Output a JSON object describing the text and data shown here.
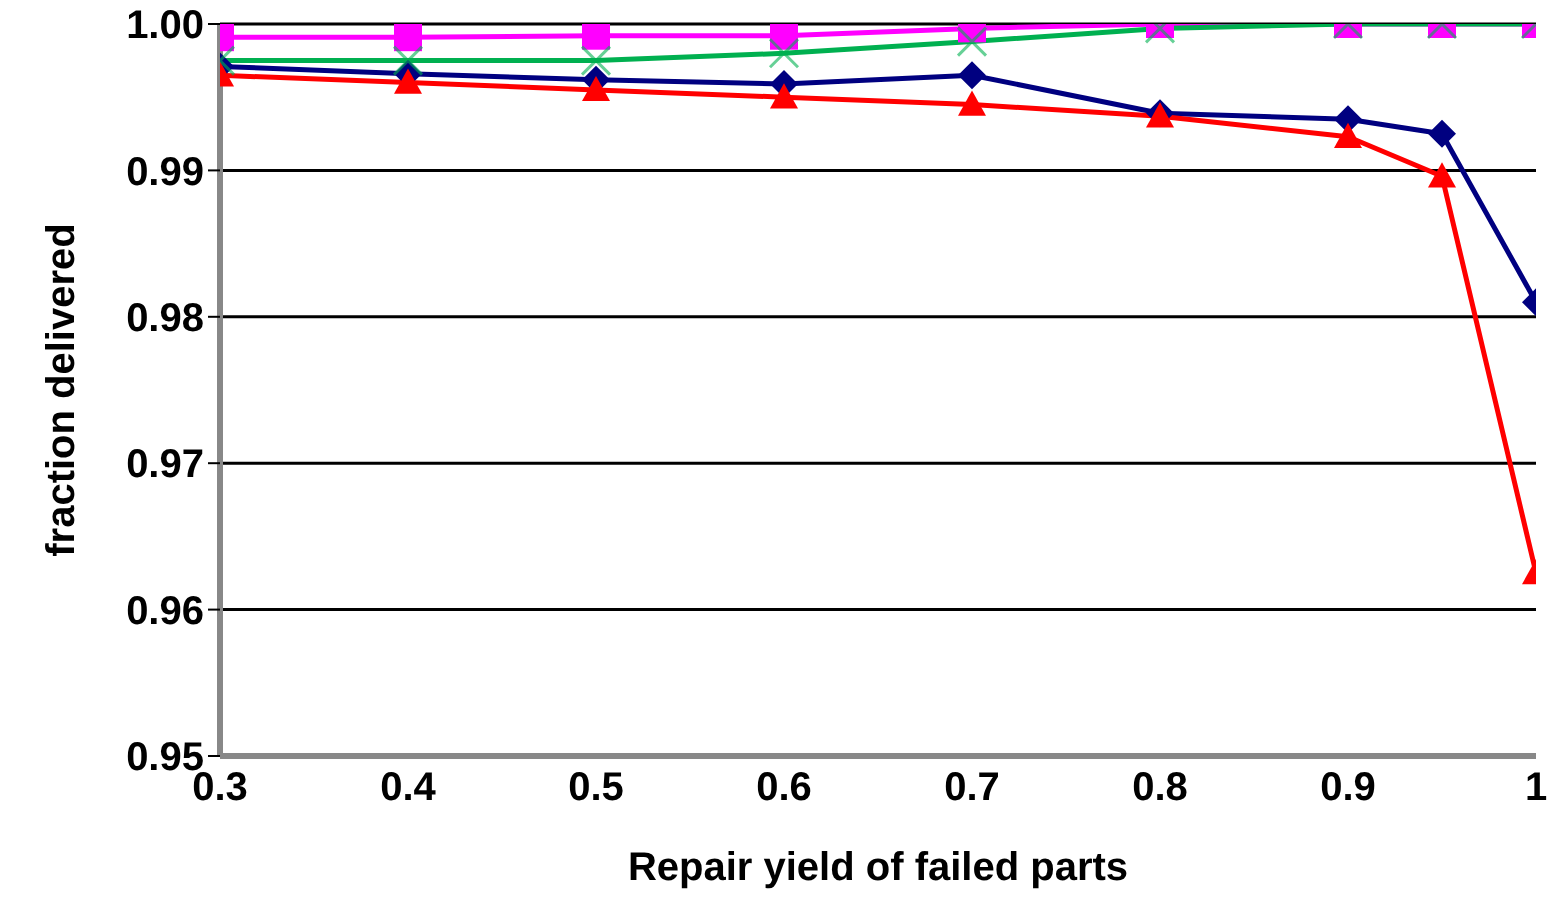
{
  "chart_data": {
    "type": "line",
    "xlabel": "Repair yield of failed parts",
    "ylabel": "fraction delivered",
    "x": [
      0.3,
      0.4,
      0.5,
      0.6,
      0.7,
      0.8,
      0.9,
      0.95,
      1
    ],
    "series": [
      {
        "color": "#000080",
        "marker": "diamond",
        "values": [
          0.9971,
          0.9966,
          0.9962,
          0.9959,
          0.9965,
          0.9939,
          0.9935,
          0.9925,
          0.981
        ]
      },
      {
        "color": "#ff00ff",
        "marker": "square",
        "values": [
          0.9991,
          0.9991,
          0.9992,
          0.9992,
          0.9997,
          1.0,
          1.0,
          1.0,
          1.0
        ]
      },
      {
        "color": "#ff0000",
        "marker": "triangle",
        "values": [
          0.9965,
          0.996,
          0.9955,
          0.995,
          0.9945,
          0.9937,
          0.9923,
          0.9896,
          0.9625
        ]
      },
      {
        "color": "#00b050",
        "marker": "cross",
        "values": [
          0.9975,
          0.9975,
          0.9975,
          0.998,
          0.9988,
          0.9997,
          1.0,
          1.0,
          1.0
        ]
      }
    ],
    "xlim": [
      0.3,
      1
    ],
    "xticks": [
      0.3,
      0.4,
      0.5,
      0.6,
      0.7,
      0.8,
      0.9,
      1
    ],
    "ylim": [
      0.95,
      1.0
    ],
    "yticks": [
      {
        "value": 0.95,
        "label": "0.95"
      },
      {
        "value": 0.96,
        "label": "0.96"
      },
      {
        "value": 0.97,
        "label": "0.97"
      },
      {
        "value": 0.98,
        "label": "0.98"
      },
      {
        "value": 0.99,
        "label": "0.99"
      },
      {
        "value": 1.0,
        "label": "1.00"
      }
    ],
    "grid": "y",
    "legend": false,
    "line_style": "solid"
  }
}
